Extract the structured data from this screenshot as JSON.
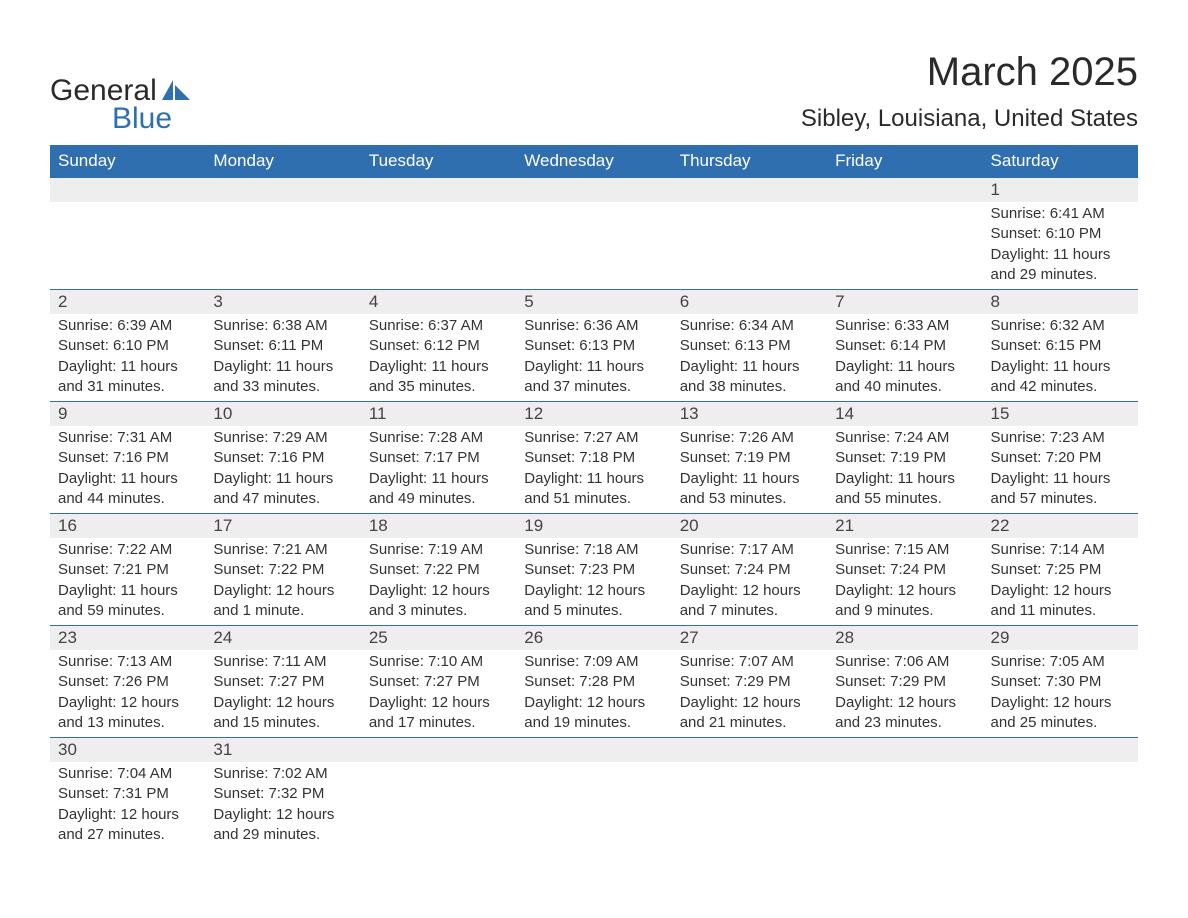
{
  "logo": {
    "text1": "General",
    "text2": "Blue",
    "shape_color": "#2f6fb0",
    "text1_color": "#2a2a2a",
    "text2_color": "#2f6fb0"
  },
  "title": "March 2025",
  "location": "Sibley, Louisiana, United States",
  "colors": {
    "header_bg": "#2f6fb0",
    "header_text": "#ffffff",
    "band_bg": "#eeeeee",
    "border": "#2f6fb0",
    "body_text": "#333333",
    "background": "#ffffff"
  },
  "typography": {
    "title_fontsize": 40,
    "location_fontsize": 24,
    "dayheader_fontsize": 17,
    "daynum_fontsize": 17,
    "body_fontsize": 15,
    "font_family": "Arial"
  },
  "day_headers": [
    "Sunday",
    "Monday",
    "Tuesday",
    "Wednesday",
    "Thursday",
    "Friday",
    "Saturday"
  ],
  "weeks": [
    [
      null,
      null,
      null,
      null,
      null,
      null,
      {
        "day": 1,
        "sunrise": "6:41 AM",
        "sunset": "6:10 PM",
        "daylight": "11 hours and 29 minutes."
      }
    ],
    [
      {
        "day": 2,
        "sunrise": "6:39 AM",
        "sunset": "6:10 PM",
        "daylight": "11 hours and 31 minutes."
      },
      {
        "day": 3,
        "sunrise": "6:38 AM",
        "sunset": "6:11 PM",
        "daylight": "11 hours and 33 minutes."
      },
      {
        "day": 4,
        "sunrise": "6:37 AM",
        "sunset": "6:12 PM",
        "daylight": "11 hours and 35 minutes."
      },
      {
        "day": 5,
        "sunrise": "6:36 AM",
        "sunset": "6:13 PM",
        "daylight": "11 hours and 37 minutes."
      },
      {
        "day": 6,
        "sunrise": "6:34 AM",
        "sunset": "6:13 PM",
        "daylight": "11 hours and 38 minutes."
      },
      {
        "day": 7,
        "sunrise": "6:33 AM",
        "sunset": "6:14 PM",
        "daylight": "11 hours and 40 minutes."
      },
      {
        "day": 8,
        "sunrise": "6:32 AM",
        "sunset": "6:15 PM",
        "daylight": "11 hours and 42 minutes."
      }
    ],
    [
      {
        "day": 9,
        "sunrise": "7:31 AM",
        "sunset": "7:16 PM",
        "daylight": "11 hours and 44 minutes."
      },
      {
        "day": 10,
        "sunrise": "7:29 AM",
        "sunset": "7:16 PM",
        "daylight": "11 hours and 47 minutes."
      },
      {
        "day": 11,
        "sunrise": "7:28 AM",
        "sunset": "7:17 PM",
        "daylight": "11 hours and 49 minutes."
      },
      {
        "day": 12,
        "sunrise": "7:27 AM",
        "sunset": "7:18 PM",
        "daylight": "11 hours and 51 minutes."
      },
      {
        "day": 13,
        "sunrise": "7:26 AM",
        "sunset": "7:19 PM",
        "daylight": "11 hours and 53 minutes."
      },
      {
        "day": 14,
        "sunrise": "7:24 AM",
        "sunset": "7:19 PM",
        "daylight": "11 hours and 55 minutes."
      },
      {
        "day": 15,
        "sunrise": "7:23 AM",
        "sunset": "7:20 PM",
        "daylight": "11 hours and 57 minutes."
      }
    ],
    [
      {
        "day": 16,
        "sunrise": "7:22 AM",
        "sunset": "7:21 PM",
        "daylight": "11 hours and 59 minutes."
      },
      {
        "day": 17,
        "sunrise": "7:21 AM",
        "sunset": "7:22 PM",
        "daylight": "12 hours and 1 minute."
      },
      {
        "day": 18,
        "sunrise": "7:19 AM",
        "sunset": "7:22 PM",
        "daylight": "12 hours and 3 minutes."
      },
      {
        "day": 19,
        "sunrise": "7:18 AM",
        "sunset": "7:23 PM",
        "daylight": "12 hours and 5 minutes."
      },
      {
        "day": 20,
        "sunrise": "7:17 AM",
        "sunset": "7:24 PM",
        "daylight": "12 hours and 7 minutes."
      },
      {
        "day": 21,
        "sunrise": "7:15 AM",
        "sunset": "7:24 PM",
        "daylight": "12 hours and 9 minutes."
      },
      {
        "day": 22,
        "sunrise": "7:14 AM",
        "sunset": "7:25 PM",
        "daylight": "12 hours and 11 minutes."
      }
    ],
    [
      {
        "day": 23,
        "sunrise": "7:13 AM",
        "sunset": "7:26 PM",
        "daylight": "12 hours and 13 minutes."
      },
      {
        "day": 24,
        "sunrise": "7:11 AM",
        "sunset": "7:27 PM",
        "daylight": "12 hours and 15 minutes."
      },
      {
        "day": 25,
        "sunrise": "7:10 AM",
        "sunset": "7:27 PM",
        "daylight": "12 hours and 17 minutes."
      },
      {
        "day": 26,
        "sunrise": "7:09 AM",
        "sunset": "7:28 PM",
        "daylight": "12 hours and 19 minutes."
      },
      {
        "day": 27,
        "sunrise": "7:07 AM",
        "sunset": "7:29 PM",
        "daylight": "12 hours and 21 minutes."
      },
      {
        "day": 28,
        "sunrise": "7:06 AM",
        "sunset": "7:29 PM",
        "daylight": "12 hours and 23 minutes."
      },
      {
        "day": 29,
        "sunrise": "7:05 AM",
        "sunset": "7:30 PM",
        "daylight": "12 hours and 25 minutes."
      }
    ],
    [
      {
        "day": 30,
        "sunrise": "7:04 AM",
        "sunset": "7:31 PM",
        "daylight": "12 hours and 27 minutes."
      },
      {
        "day": 31,
        "sunrise": "7:02 AM",
        "sunset": "7:32 PM",
        "daylight": "12 hours and 29 minutes."
      },
      null,
      null,
      null,
      null,
      null
    ]
  ],
  "labels": {
    "sunrise": "Sunrise:",
    "sunset": "Sunset:",
    "daylight": "Daylight:"
  }
}
